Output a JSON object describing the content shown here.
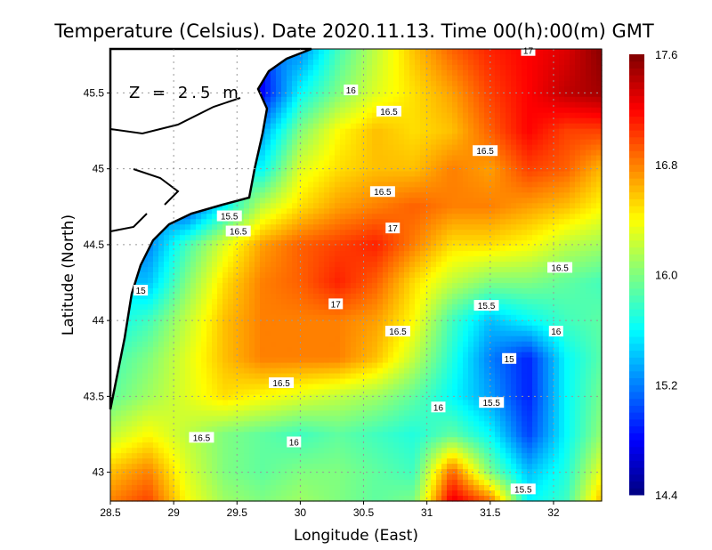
{
  "chart_data": {
    "type": "heatmap",
    "title": "Temperature (Celsius). Date 2020.11.13. Time 00(h):00(m) GMT",
    "xlabel": "Longitude (East)",
    "ylabel": "Latitude (North)",
    "annotation": "Z = 2.5 m",
    "xlim": [
      28.5,
      32.38
    ],
    "ylim": [
      42.81,
      45.79
    ],
    "xticks": [
      "28.5",
      "29",
      "29.5",
      "30",
      "30.5",
      "31",
      "31.5",
      "32"
    ],
    "xtick_values": [
      28.5,
      29,
      29.5,
      30,
      30.5,
      31,
      31.5,
      32
    ],
    "yticks": [
      "43",
      "43.5",
      "44",
      "44.5",
      "45",
      "45.5"
    ],
    "ytick_values": [
      43,
      43.5,
      44,
      44.5,
      45,
      45.5
    ],
    "grid": true,
    "colorbar": {
      "min": 14.4,
      "max": 17.6,
      "ticks": [
        "14.4",
        "15.2",
        "16.0",
        "16.8",
        "17.6"
      ],
      "tick_values": [
        14.4,
        15.2,
        16.0,
        16.8,
        17.6
      ],
      "colormap": "jet"
    },
    "grid_lons": [
      28.5,
      28.8,
      29.1,
      29.4,
      29.7,
      30.0,
      30.3,
      30.6,
      30.9,
      31.2,
      31.5,
      31.8,
      32.1,
      32.4
    ],
    "grid_lats": [
      45.8,
      45.5,
      45.25,
      45.0,
      44.75,
      44.5,
      44.25,
      44.0,
      43.75,
      43.5,
      43.25,
      43.0,
      42.8
    ],
    "values": [
      [
        null,
        null,
        null,
        null,
        null,
        15.2,
        15.8,
        16.2,
        16.6,
        16.9,
        17.1,
        17.2,
        17.3,
        17.6
      ],
      [
        null,
        null,
        null,
        null,
        14.8,
        15.6,
        16.0,
        16.3,
        16.5,
        16.7,
        17.0,
        17.2,
        17.4,
        17.5
      ],
      [
        null,
        null,
        null,
        null,
        15.3,
        16.0,
        16.4,
        16.6,
        16.5,
        16.6,
        16.9,
        17.2,
        17.0,
        17.0
      ],
      [
        null,
        null,
        null,
        null,
        15.6,
        16.3,
        16.5,
        16.6,
        16.6,
        16.8,
        16.7,
        17.0,
        16.9,
        16.6
      ],
      [
        null,
        null,
        15.0,
        15.6,
        16.2,
        16.5,
        16.7,
        16.8,
        16.9,
        16.8,
        16.8,
        16.7,
        16.6,
        16.4
      ],
      [
        null,
        15.2,
        15.8,
        16.3,
        16.7,
        16.9,
        17.0,
        17.1,
        16.8,
        16.5,
        16.5,
        16.4,
        16.2,
        16.1
      ],
      [
        null,
        15.4,
        16.0,
        16.5,
        16.8,
        16.9,
        17.1,
        16.9,
        16.5,
        16.2,
        16.0,
        16.0,
        15.9,
        15.8
      ],
      [
        15.6,
        15.8,
        16.2,
        16.6,
        16.8,
        16.8,
        16.8,
        16.7,
        16.4,
        15.8,
        15.4,
        15.6,
        15.8,
        15.9
      ],
      [
        15.8,
        16.0,
        16.3,
        16.6,
        16.8,
        16.8,
        16.8,
        16.6,
        16.2,
        15.7,
        15.2,
        14.9,
        15.6,
        15.9
      ],
      [
        15.9,
        16.1,
        16.3,
        16.5,
        16.4,
        16.3,
        16.2,
        16.1,
        15.9,
        15.6,
        15.3,
        14.9,
        15.6,
        16.0
      ],
      [
        16.2,
        16.4,
        16.2,
        16.0,
        15.9,
        15.8,
        15.9,
        15.8,
        15.7,
        15.9,
        15.6,
        15.0,
        15.6,
        16.1
      ],
      [
        16.6,
        16.8,
        16.3,
        16.0,
        15.9,
        16.0,
        16.0,
        15.9,
        15.8,
        16.9,
        16.0,
        15.4,
        15.7,
        16.4
      ],
      [
        16.8,
        17.0,
        16.4,
        16.1,
        16.0,
        16.1,
        16.0,
        15.9,
        16.0,
        17.3,
        16.9,
        15.6,
        15.8,
        16.7
      ]
    ],
    "contour_labels": [
      {
        "text": "16",
        "lon": 30.4,
        "lat": 45.52
      },
      {
        "text": "16.5",
        "lon": 30.7,
        "lat": 45.38
      },
      {
        "text": "16.5",
        "lon": 31.46,
        "lat": 45.12
      },
      {
        "text": "16.5",
        "lon": 30.65,
        "lat": 44.85
      },
      {
        "text": "15.5",
        "lon": 29.44,
        "lat": 44.69
      },
      {
        "text": "16.5",
        "lon": 29.51,
        "lat": 44.59
      },
      {
        "text": "17",
        "lon": 30.73,
        "lat": 44.61
      },
      {
        "text": "16.5",
        "lon": 32.05,
        "lat": 44.35
      },
      {
        "text": "15",
        "lon": 28.74,
        "lat": 44.2
      },
      {
        "text": "17",
        "lon": 30.28,
        "lat": 44.11
      },
      {
        "text": "15.5",
        "lon": 31.47,
        "lat": 44.1
      },
      {
        "text": "16",
        "lon": 32.02,
        "lat": 43.93
      },
      {
        "text": "16.5",
        "lon": 30.77,
        "lat": 43.93
      },
      {
        "text": "15",
        "lon": 31.65,
        "lat": 43.75
      },
      {
        "text": "16.5",
        "lon": 29.85,
        "lat": 43.59
      },
      {
        "text": "16",
        "lon": 31.09,
        "lat": 43.43
      },
      {
        "text": "15.5",
        "lon": 31.51,
        "lat": 43.46
      },
      {
        "text": "16.5",
        "lon": 29.22,
        "lat": 43.23
      },
      {
        "text": "16",
        "lon": 29.95,
        "lat": 43.2
      },
      {
        "text": "15.5",
        "lon": 31.76,
        "lat": 42.89
      },
      {
        "text": "17",
        "lon": 31.8,
        "lat": 45.78
      }
    ]
  }
}
